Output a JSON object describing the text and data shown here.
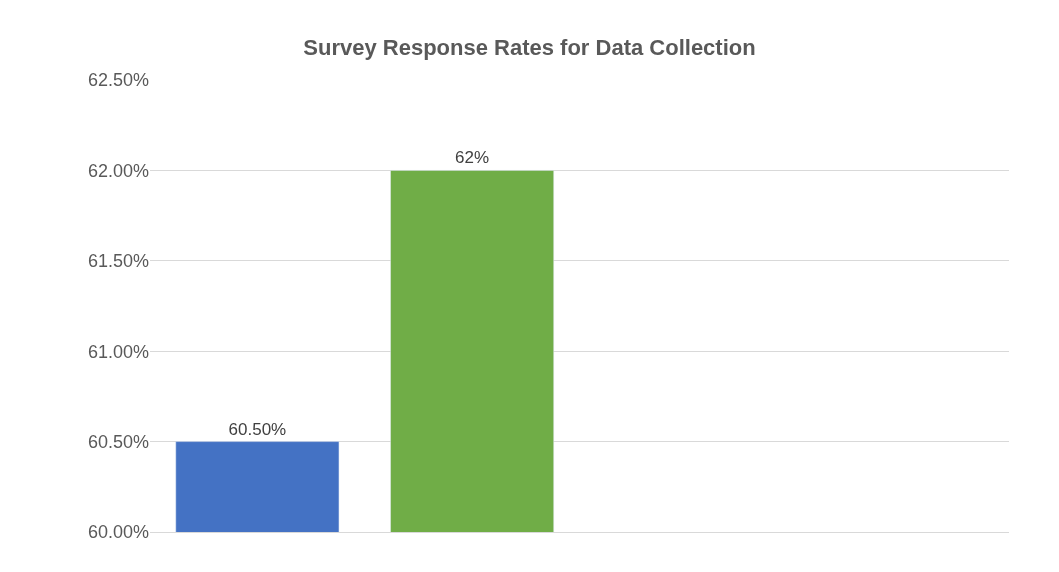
{
  "chart_data": {
    "type": "bar",
    "title": "Survey Response Rates for Data Collection",
    "categories": [
      null,
      null,
      null,
      null
    ],
    "values": [
      60.5,
      62,
      null,
      null
    ],
    "colors": [
      "#4472c4",
      "#70ad47",
      "#4472c4",
      "#4472c4"
    ],
    "value_labels": [
      "60.50%",
      "62%",
      null,
      null
    ],
    "ylim": [
      60,
      62.5
    ],
    "yticks": [
      {
        "value": 60,
        "label": "60.00%"
      },
      {
        "value": 60.5,
        "label": "60.50%"
      },
      {
        "value": 61,
        "label": "61.00%"
      },
      {
        "value": 61.5,
        "label": "61.50%"
      },
      {
        "value": 62,
        "label": "62.00%"
      },
      {
        "value": 62.5,
        "label": "62.50%"
      }
    ],
    "grid": "y"
  }
}
